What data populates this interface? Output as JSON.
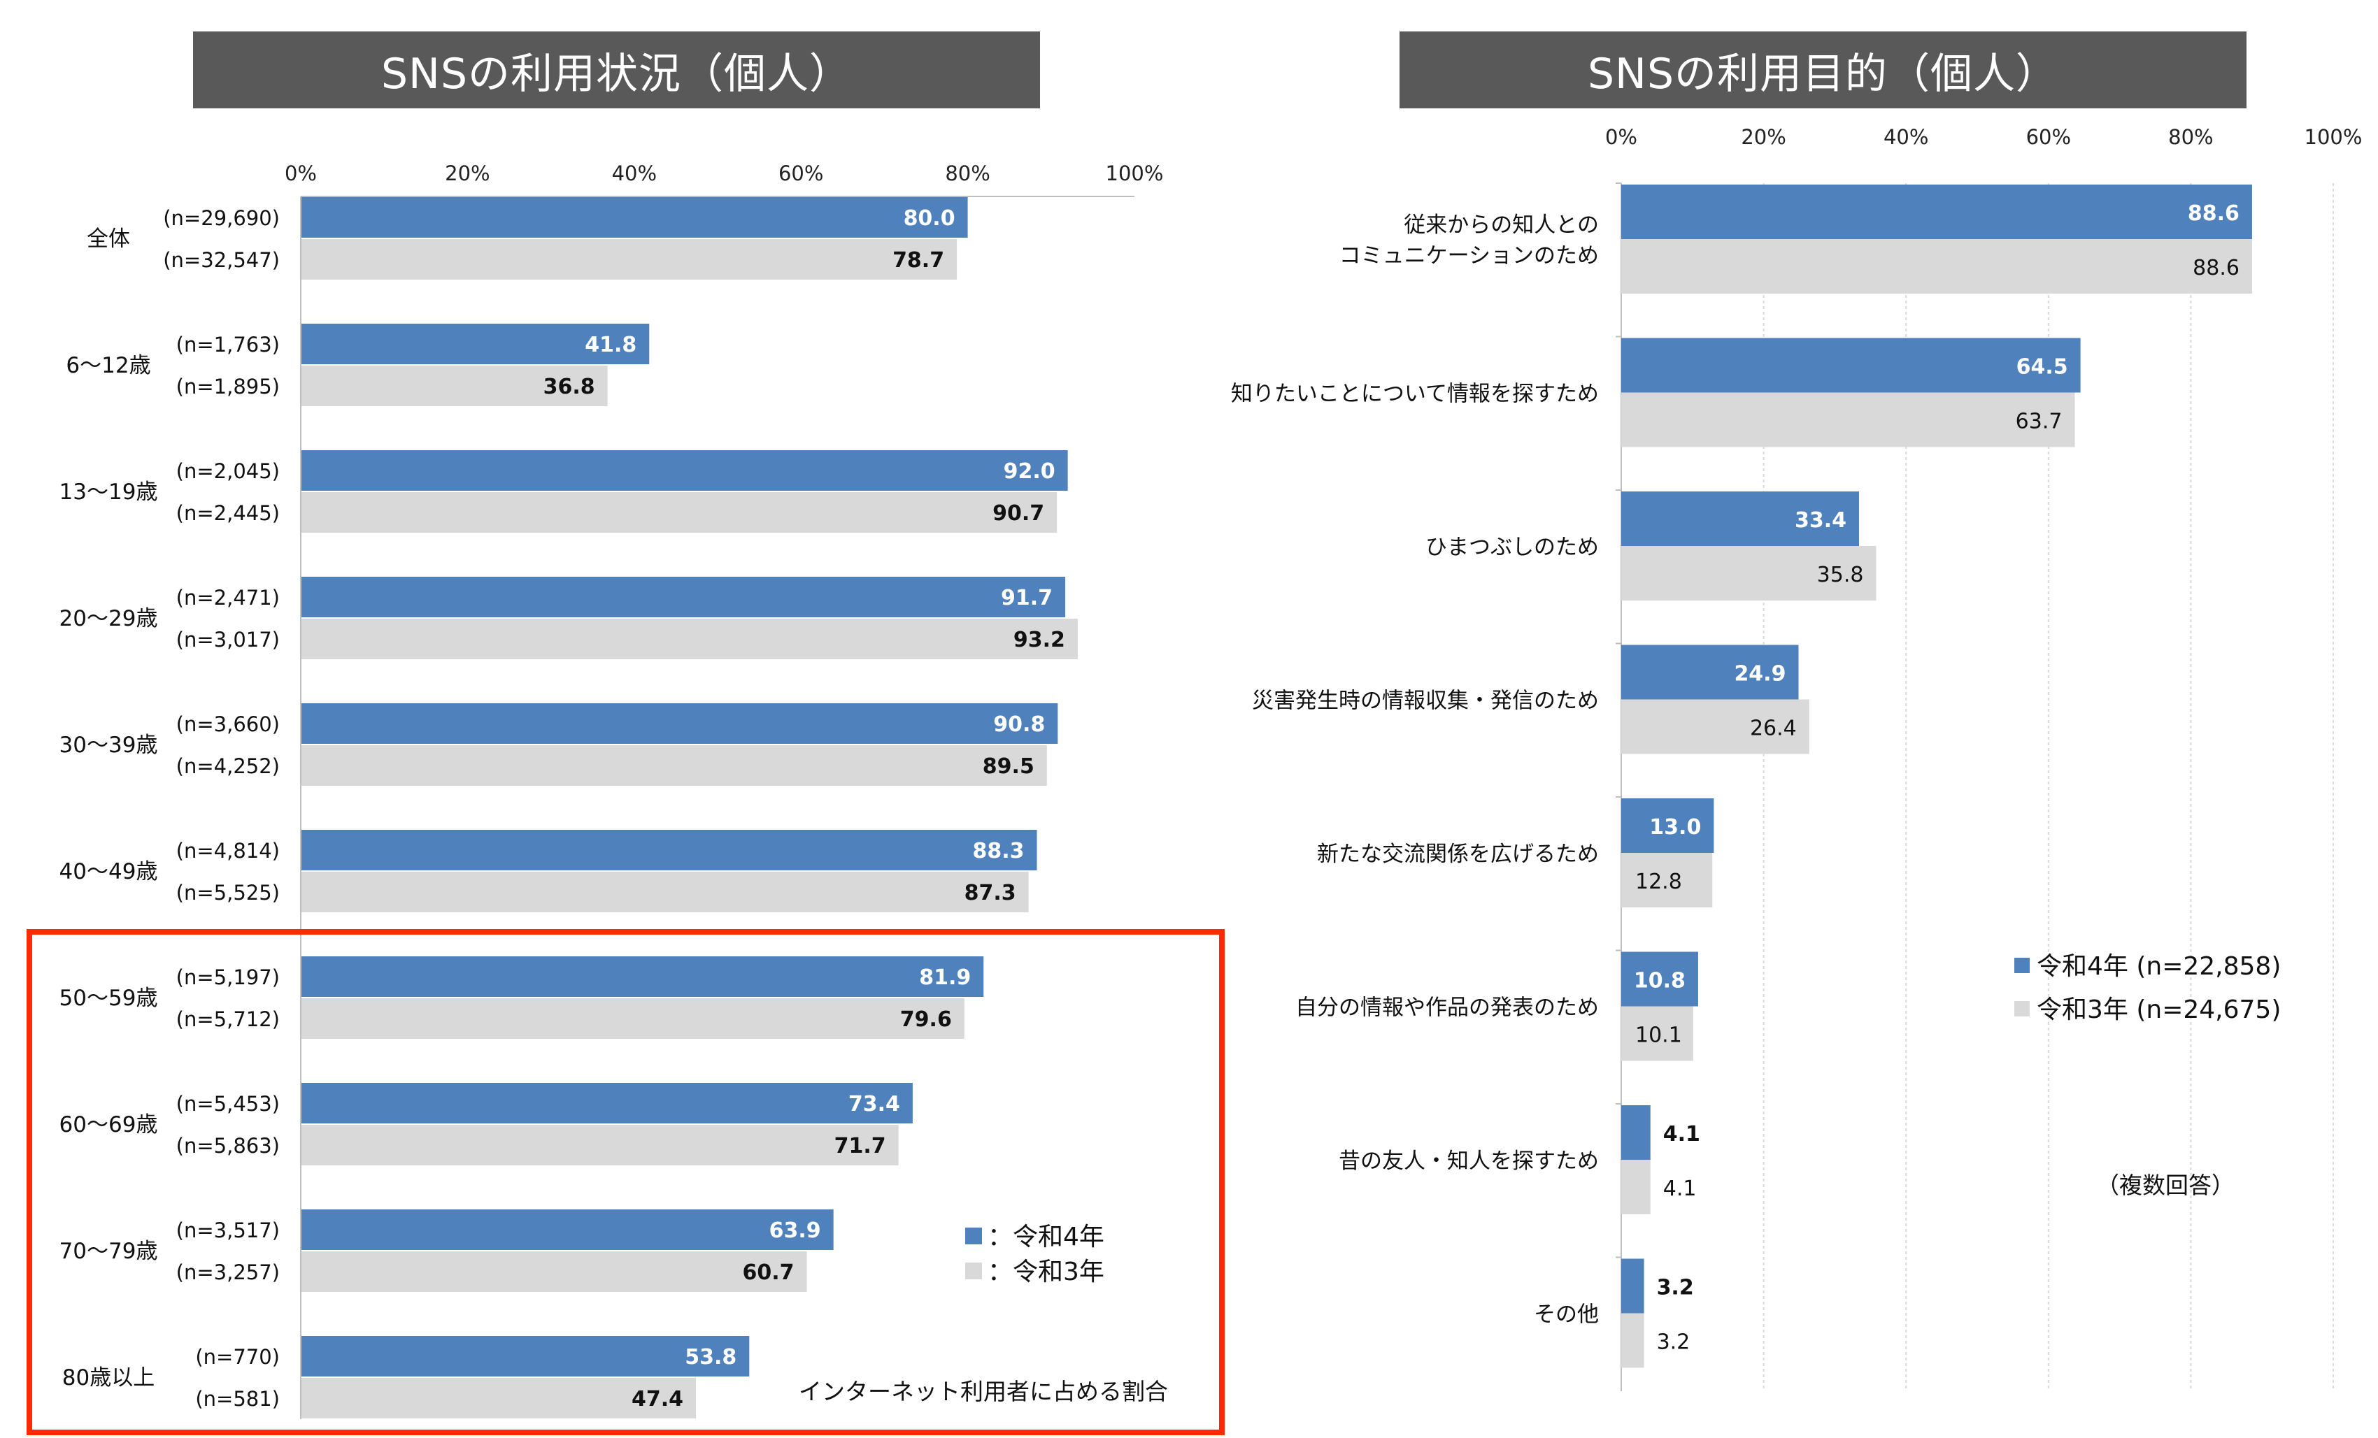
{
  "left_title": "SNSの利用状況（個人）",
  "right_title": "SNSの利用目的（個人）",
  "colors": {
    "r4": "#4f81bd",
    "r3": "#d9d9d9",
    "highlight": "#ff2a00",
    "title_bg": "#595959"
  },
  "chart_data": [
    {
      "type": "bar",
      "orientation": "horizontal",
      "title": "SNSの利用状況（個人）",
      "xlim": [
        0,
        100
      ],
      "x_ticks": [
        "0%",
        "20%",
        "40%",
        "60%",
        "80%",
        "100%"
      ],
      "categories": [
        "全体",
        "6～12歳",
        "13～19歳",
        "20～29歳",
        "30～39歳",
        "40～49歳",
        "50～59歳",
        "60～69歳",
        "70～79歳",
        "80歳以上"
      ],
      "series": [
        {
          "name": "：令和4年",
          "values": [
            80.0,
            41.8,
            92.0,
            91.7,
            90.8,
            88.3,
            81.9,
            73.4,
            63.9,
            53.8
          ],
          "n": [
            "(n=29,690)",
            "(n=1,763)",
            "(n=2,045)",
            "(n=2,471)",
            "(n=3,660)",
            "(n=4,814)",
            "(n=5,197)",
            "(n=5,453)",
            "(n=3,517)",
            "(n=770)"
          ]
        },
        {
          "name": "：令和3年",
          "values": [
            78.7,
            36.8,
            90.7,
            93.2,
            89.5,
            87.3,
            79.6,
            71.7,
            60.7,
            47.4
          ],
          "n": [
            "(n=32,547)",
            "(n=1,895)",
            "(n=2,445)",
            "(n=3,017)",
            "(n=4,252)",
            "(n=5,525)",
            "(n=5,712)",
            "(n=5,863)",
            "(n=3,257)",
            "(n=581)"
          ]
        }
      ],
      "highlighted_categories": [
        "50～59歳",
        "60～69歳",
        "70～79歳",
        "80歳以上"
      ],
      "annotation": "インターネット利用者に占める割合",
      "legend_position": "bottom-right"
    },
    {
      "type": "bar",
      "orientation": "horizontal",
      "title": "SNSの利用目的（個人）",
      "xlim": [
        0,
        100
      ],
      "x_ticks": [
        "0%",
        "20%",
        "40%",
        "60%",
        "80%",
        "100%"
      ],
      "grid": true,
      "categories": [
        [
          "従来からの知人との",
          "コミュニケーションのため"
        ],
        [
          "知りたいことについて情報を探すため"
        ],
        [
          "ひまつぶしのため"
        ],
        [
          "災害発生時の情報収集・発信のため"
        ],
        [
          "新たな交流関係を広げるため"
        ],
        [
          "自分の情報や作品の発表のため"
        ],
        [
          "昔の友人・知人を探すため"
        ],
        [
          "その他"
        ]
      ],
      "series": [
        {
          "name": "令和4年 (n=22,858)",
          "values": [
            88.6,
            64.5,
            33.4,
            24.9,
            13.0,
            10.8,
            4.1,
            3.2
          ]
        },
        {
          "name": "令和3年 (n=24,675)",
          "values": [
            88.6,
            63.7,
            35.8,
            26.4,
            12.8,
            10.1,
            4.1,
            3.2
          ]
        }
      ],
      "annotation": "（複数回答）",
      "legend_position": "right"
    }
  ]
}
